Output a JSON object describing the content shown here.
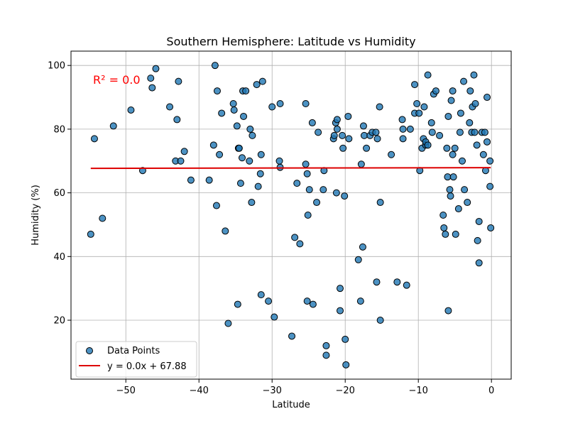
{
  "chart_data": {
    "type": "scatter",
    "title": "Southern Hemisphere: Latitude vs Humidity",
    "xlabel": "Latitude",
    "ylabel": "Humidity (%)",
    "xlim": [
      -57.5,
      2.7
    ],
    "ylim": [
      1.5,
      104.5
    ],
    "xticks": [
      -50,
      -40,
      -30,
      -20,
      -10,
      0
    ],
    "yticks": [
      20,
      40,
      60,
      80,
      100
    ],
    "grid": true,
    "legend_placement": "lower-left",
    "colors": {
      "points": "#1f77b4",
      "point_edge": "#000000",
      "regression": "#dd0000",
      "annotation": "#ff0000"
    },
    "annotation": "R² = 0.0",
    "series": [
      {
        "name": "Data Points",
        "type": "scatter",
        "points": [
          [
            -54.8,
            47
          ],
          [
            -54.3,
            77
          ],
          [
            -53.2,
            52
          ],
          [
            -51.7,
            81
          ],
          [
            -49.3,
            86
          ],
          [
            -47.7,
            67
          ],
          [
            -46.6,
            96
          ],
          [
            -46.4,
            93
          ],
          [
            -45.9,
            99
          ],
          [
            -44.0,
            87
          ],
          [
            -43.2,
            70
          ],
          [
            -43.0,
            83
          ],
          [
            -42.8,
            95
          ],
          [
            -42.5,
            70
          ],
          [
            -42.0,
            73
          ],
          [
            -41.1,
            64
          ],
          [
            -38.6,
            64
          ],
          [
            -38.0,
            75
          ],
          [
            -37.8,
            100
          ],
          [
            -37.6,
            56
          ],
          [
            -37.5,
            92
          ],
          [
            -37.2,
            72
          ],
          [
            -36.9,
            85
          ],
          [
            -36.4,
            48
          ],
          [
            -36.0,
            19
          ],
          [
            -35.3,
            88
          ],
          [
            -35.2,
            86
          ],
          [
            -34.8,
            81
          ],
          [
            -34.7,
            25
          ],
          [
            -34.6,
            74
          ],
          [
            -34.5,
            74
          ],
          [
            -34.3,
            63
          ],
          [
            -34.1,
            71
          ],
          [
            -34.0,
            92
          ],
          [
            -33.9,
            84
          ],
          [
            -33.6,
            92
          ],
          [
            -33.1,
            70
          ],
          [
            -33.0,
            80
          ],
          [
            -32.8,
            57
          ],
          [
            -32.7,
            78
          ],
          [
            -32.1,
            94
          ],
          [
            -31.9,
            62
          ],
          [
            -31.6,
            66
          ],
          [
            -31.5,
            72
          ],
          [
            -31.5,
            28
          ],
          [
            -31.3,
            95
          ],
          [
            -30.5,
            26
          ],
          [
            -30.0,
            87
          ],
          [
            -29.7,
            21
          ],
          [
            -29.0,
            70
          ],
          [
            -28.9,
            88
          ],
          [
            -28.9,
            68
          ],
          [
            -27.3,
            15
          ],
          [
            -26.9,
            46
          ],
          [
            -26.6,
            63
          ],
          [
            -26.2,
            44
          ],
          [
            -25.4,
            88
          ],
          [
            -25.4,
            69
          ],
          [
            -25.2,
            66
          ],
          [
            -25.1,
            53
          ],
          [
            -25.2,
            26
          ],
          [
            -24.9,
            61
          ],
          [
            -24.5,
            82
          ],
          [
            -24.4,
            25
          ],
          [
            -23.9,
            57
          ],
          [
            -23.7,
            79
          ],
          [
            -23.0,
            61
          ],
          [
            -22.9,
            67
          ],
          [
            -22.6,
            12
          ],
          [
            -22.6,
            9
          ],
          [
            -21.6,
            77
          ],
          [
            -21.5,
            78
          ],
          [
            -21.3,
            82
          ],
          [
            -21.2,
            60
          ],
          [
            -21.1,
            83
          ],
          [
            -21.1,
            80
          ],
          [
            -20.7,
            30
          ],
          [
            -20.7,
            23
          ],
          [
            -20.4,
            78
          ],
          [
            -20.3,
            74
          ],
          [
            -20.1,
            59
          ],
          [
            -20.0,
            14
          ],
          [
            -19.9,
            6
          ],
          [
            -19.6,
            84
          ],
          [
            -19.5,
            77
          ],
          [
            -18.2,
            39
          ],
          [
            -17.9,
            26
          ],
          [
            -17.8,
            69
          ],
          [
            -17.6,
            43
          ],
          [
            -17.5,
            81
          ],
          [
            -17.4,
            78
          ],
          [
            -17.1,
            74
          ],
          [
            -16.6,
            78
          ],
          [
            -16.3,
            79
          ],
          [
            -15.8,
            79
          ],
          [
            -15.7,
            32
          ],
          [
            -15.6,
            77
          ],
          [
            -15.3,
            87
          ],
          [
            -15.2,
            20
          ],
          [
            -15.2,
            57
          ],
          [
            -13.7,
            72
          ],
          [
            -12.9,
            32
          ],
          [
            -12.2,
            83
          ],
          [
            -12.1,
            80
          ],
          [
            -12.1,
            77
          ],
          [
            -11.6,
            31
          ],
          [
            -11.1,
            80
          ],
          [
            -10.5,
            94
          ],
          [
            -10.5,
            85
          ],
          [
            -10.2,
            88
          ],
          [
            -9.9,
            85
          ],
          [
            -9.8,
            67
          ],
          [
            -9.5,
            74
          ],
          [
            -9.3,
            77
          ],
          [
            -9.2,
            87
          ],
          [
            -9.0,
            75
          ],
          [
            -9.0,
            76
          ],
          [
            -8.7,
            75
          ],
          [
            -8.7,
            97
          ],
          [
            -8.2,
            82
          ],
          [
            -8.1,
            79
          ],
          [
            -7.9,
            91
          ],
          [
            -7.6,
            92
          ],
          [
            -7.1,
            78
          ],
          [
            -6.6,
            53
          ],
          [
            -6.5,
            49
          ],
          [
            -6.3,
            47
          ],
          [
            -6.1,
            74
          ],
          [
            -6.0,
            65
          ],
          [
            -5.9,
            23
          ],
          [
            -5.9,
            84
          ],
          [
            -5.7,
            61
          ],
          [
            -5.6,
            59
          ],
          [
            -5.5,
            89
          ],
          [
            -5.3,
            92
          ],
          [
            -5.3,
            72
          ],
          [
            -5.2,
            65
          ],
          [
            -5.0,
            74
          ],
          [
            -4.9,
            47
          ],
          [
            -4.5,
            55
          ],
          [
            -4.3,
            79
          ],
          [
            -4.2,
            85
          ],
          [
            -4.0,
            70
          ],
          [
            -3.8,
            95
          ],
          [
            -3.7,
            61
          ],
          [
            -3.3,
            57
          ],
          [
            -3.0,
            82
          ],
          [
            -2.9,
            92
          ],
          [
            -2.7,
            79
          ],
          [
            -2.6,
            87
          ],
          [
            -2.4,
            97
          ],
          [
            -2.3,
            79
          ],
          [
            -2.2,
            88
          ],
          [
            -2.0,
            75
          ],
          [
            -1.9,
            45
          ],
          [
            -1.7,
            51
          ],
          [
            -1.7,
            38
          ],
          [
            -1.3,
            79
          ],
          [
            -1.1,
            72
          ],
          [
            -0.9,
            79
          ],
          [
            -0.8,
            67
          ],
          [
            -0.6,
            90
          ],
          [
            -0.6,
            76
          ],
          [
            -0.2,
            70
          ],
          [
            -0.2,
            62
          ],
          [
            -0.1,
            49
          ]
        ]
      },
      {
        "name": "y = 0.0x + 67.88",
        "type": "line",
        "x": [
          -54.8,
          -0.1
        ],
        "y": [
          67.7,
          67.9
        ]
      }
    ]
  }
}
